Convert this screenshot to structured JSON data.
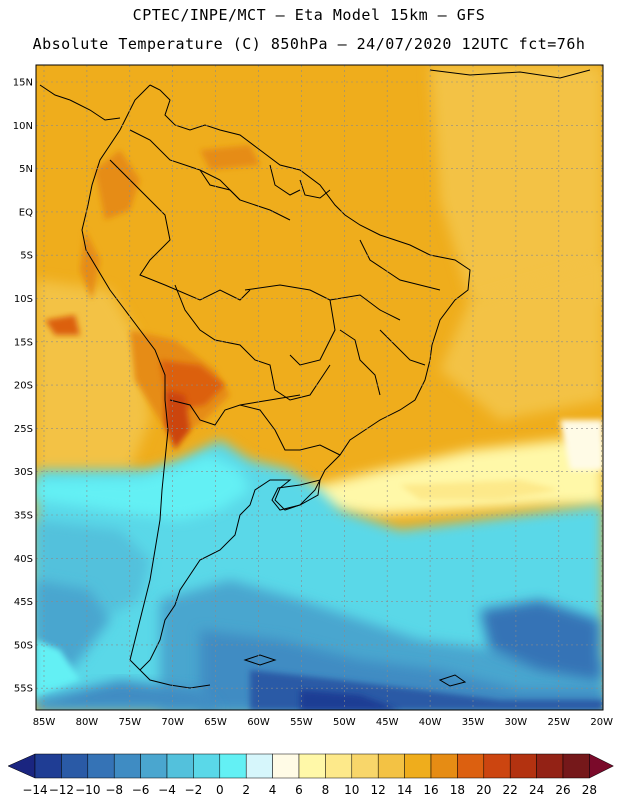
{
  "header": {
    "line1": "CPTEC/INPE/MCT –  Eta Model 15km – GFS",
    "line2": "Absolute Temperature (C) 850hPa – 24/07/2020 12UTC fct=76h"
  },
  "map": {
    "lat_labels": [
      "15N",
      "10N",
      "5N",
      "EQ",
      "5S",
      "10S",
      "15S",
      "20S",
      "25S",
      "30S",
      "35S",
      "40S",
      "45S",
      "50S",
      "55S"
    ],
    "lon_labels": [
      "85W",
      "80W",
      "75W",
      "70W",
      "65W",
      "60W",
      "55W",
      "50W",
      "45W",
      "40W",
      "35W",
      "30W",
      "25W",
      "20W"
    ]
  },
  "colorbar": {
    "labels": [
      "-14",
      "-12",
      "-10",
      "-8",
      "-6",
      "-4",
      "-2",
      "0",
      "2",
      "4",
      "6",
      "8",
      "10",
      "12",
      "14",
      "16",
      "18",
      "20",
      "22",
      "24",
      "26",
      "28"
    ],
    "colors": [
      "#1f3d94",
      "#2a5aa6",
      "#3573b6",
      "#3f8cc3",
      "#4aa6cf",
      "#53c1dc",
      "#5ad8e8",
      "#63f0f4",
      "#d6f6fb",
      "#fffbe6",
      "#fff8a8",
      "#fde98a",
      "#f8d66a",
      "#f3c244",
      "#efad1c",
      "#e68c14",
      "#dc6010",
      "#cc4510",
      "#b33210",
      "#932215",
      "#75181a"
    ],
    "min_arrow_color": "#1a2580",
    "max_arrow_color": "#7a0a2a"
  }
}
